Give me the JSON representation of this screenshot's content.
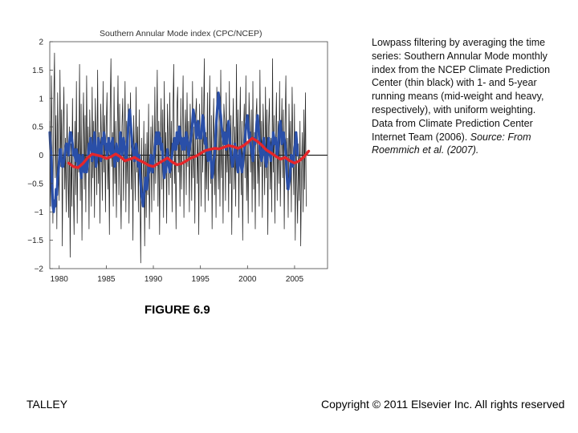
{
  "chart_data": {
    "type": "line",
    "title": "Southern Annular Mode index (CPC/NCEP)",
    "xlabel": "",
    "ylabel": "",
    "xlim": [
      1979,
      2008.5
    ],
    "ylim": [
      -2,
      2
    ],
    "x_ticks": [
      "1980",
      "1985",
      "1990",
      "1995",
      "2000",
      "2005"
    ],
    "y_ticks": [
      "2",
      "1.5",
      "1",
      "0.5",
      "0",
      "−0.5",
      "−1",
      "−1.5",
      "−2"
    ],
    "zero_line": true,
    "grid": false,
    "legend": "none",
    "series": [
      {
        "style": "monthly (thin black)",
        "color": "#2a2a2a",
        "start": 1979.0,
        "step": 0.0833,
        "values": [
          0.6,
          -0.9,
          1.4,
          0.3,
          -1.2,
          0.9,
          1.8,
          -0.4,
          0.7,
          -1.3,
          1.1,
          0.2,
          -0.8,
          1.5,
          -0.2,
          0.8,
          -1.6,
          0.4,
          1.2,
          -0.6,
          0.3,
          -1.0,
          0.9,
          -0.3,
          -1.1,
          0.5,
          -1.8,
          0.2,
          -0.9,
          1.0,
          -0.5,
          -1.4,
          0.6,
          -0.7,
          1.3,
          -1.2,
          0.4,
          -0.3,
          1.6,
          -0.8,
          0.9,
          -1.5,
          0.2,
          1.1,
          -0.6,
          0.7,
          -1.0,
          1.4,
          -0.2,
          0.5,
          -1.3,
          0.8,
          0.1,
          -0.9,
          1.2,
          -0.4,
          0.6,
          -1.1,
          1.0,
          0.3,
          -0.7,
          1.5,
          -0.5,
          0.4,
          -1.2,
          0.9,
          0.2,
          -0.8,
          1.3,
          -0.3,
          0.7,
          -1.0,
          0.5,
          1.1,
          -0.6,
          0.2,
          -1.4,
          0.8,
          1.7,
          -0.2,
          0.4,
          -0.9,
          1.2,
          -0.5,
          0.6,
          -1.1,
          0.3,
          1.4,
          -0.7,
          0.9,
          -0.4,
          -1.3,
          0.5,
          1.0,
          -0.8,
          0.2,
          1.3,
          -1.0,
          0.6,
          -0.5,
          0.9,
          -1.2,
          0.4,
          1.1,
          -0.6,
          0.3,
          -1.5,
          0.7,
          0.0,
          -0.8,
          1.2,
          -0.3,
          0.5,
          -1.0,
          0.8,
          -0.6,
          -1.9,
          0.3,
          -0.9,
          -0.4,
          0.6,
          -1.6,
          0.2,
          -1.1,
          0.4,
          -0.7,
          0.9,
          -1.3,
          -0.2,
          0.5,
          -1.0,
          0.7,
          0.1,
          -0.8,
          1.2,
          -0.5,
          0.3,
          1.5,
          -0.9,
          0.6,
          -1.4,
          0.2,
          1.0,
          -0.6,
          0.8,
          -1.1,
          1.3,
          -0.2,
          0.4,
          -1.2,
          0.9,
          0.3,
          -0.7,
          1.1,
          -0.4,
          0.6,
          -1.0,
          0.7,
          1.6,
          -0.5,
          0.2,
          -1.3,
          0.8,
          1.2,
          -0.3,
          0.5,
          -0.9,
          1.0,
          -0.6,
          0.4,
          1.4,
          -1.1,
          0.3,
          0.8,
          -0.7,
          1.1,
          -0.2,
          0.6,
          -1.0,
          0.9,
          0.2,
          -0.8,
          1.3,
          -0.4,
          0.5,
          -1.2,
          0.7,
          1.0,
          -0.5,
          0.3,
          -1.4,
          0.9,
          0.1,
          -0.9,
          1.2,
          -0.3,
          0.6,
          1.7,
          -1.0,
          0.4,
          -0.6,
          1.1,
          -0.8,
          0.2,
          1.4,
          -0.5,
          0.7,
          -1.3,
          0.3,
          1.0,
          -0.7,
          0.5,
          -1.1,
          1.2,
          0.0,
          -0.6,
          0.8,
          -0.9,
          1.5,
          -0.4,
          0.3,
          -1.2,
          0.9,
          0.6,
          -0.8,
          1.1,
          -0.3,
          0.4,
          -1.0,
          1.3,
          -0.5,
          0.7,
          -1.4,
          0.2,
          1.0,
          -0.6,
          0.5,
          -0.9,
          1.6,
          -0.2,
          0.8,
          -1.1,
          0.3,
          1.2,
          -0.7,
          0.6,
          -1.5,
          0.4,
          0.9,
          -0.4,
          1.4,
          -0.8,
          0.2,
          -1.2,
          1.1,
          0.5,
          -0.3,
          0.8,
          -1.0,
          1.3,
          -0.6,
          0.4,
          -1.3,
          0.7,
          1.0,
          -0.5,
          0.2,
          -0.9,
          1.5,
          -0.2,
          0.6,
          -1.1,
          0.9,
          0.3,
          -0.7,
          1.2,
          -0.4,
          0.8,
          -1.4,
          0.5,
          1.0,
          -0.6,
          0.3,
          -1.0,
          1.7,
          -0.3,
          0.7,
          -1.2,
          0.4,
          1.1,
          -0.8,
          0.6,
          -0.5,
          1.3,
          -0.9,
          0.2,
          1.0,
          -0.4,
          0.8,
          -1.3,
          0.5,
          1.4,
          -0.6,
          0.3,
          -1.1,
          0.9,
          -0.2,
          0.6,
          -1.0,
          1.2,
          0.1,
          -0.7,
          0.9,
          -1.5,
          0.4,
          -0.5,
          -1.2,
          0.2,
          -0.8,
          0.6,
          -1.6,
          -0.3,
          0.4,
          -1.0,
          0.8,
          -0.6,
          1.1,
          -0.9
        ]
      },
      {
        "style": "1-year running mean (mid-weight)",
        "color": "#2a4fa8",
        "start": 1979.0,
        "step": 0.0833,
        "values": [
          0.4,
          0.1,
          0.0,
          -0.5,
          -0.9,
          -1.0,
          -0.8,
          -0.9,
          -0.6,
          -0.7,
          -0.4,
          -0.3,
          -0.1,
          0.1,
          0.1,
          -0.1,
          -0.2,
          -0.2,
          -0.1,
          0.0,
          0.1,
          0.2,
          0.2,
          0.1,
          0.0,
          0.2,
          0.4,
          0.4,
          0.3,
          0.2,
          0.0,
          0.1,
          0.0,
          -0.1,
          0.1,
          0.0,
          -0.2,
          -0.1,
          0.0,
          -0.2,
          -0.4,
          -0.2,
          0.0,
          -0.2,
          -0.3,
          -0.2,
          -0.1,
          -0.3,
          -0.2,
          0.0,
          0.2,
          0.1,
          0.3,
          0.1,
          -0.1,
          0.0,
          0.2,
          0.4,
          0.1,
          -0.2,
          -0.1,
          0.1,
          0.3,
          0.2,
          0.0,
          -0.1,
          0.1,
          0.3,
          0.2,
          0.4,
          0.3,
          0.1,
          0.2,
          0.0,
          0.1,
          0.3,
          0.2,
          0.1,
          0.0,
          0.2,
          0.3,
          0.1,
          0.0,
          -0.2,
          0.0,
          0.2,
          0.1,
          -0.1,
          0.0,
          0.1,
          0.4,
          0.2,
          0.0,
          0.1,
          0.3,
          0.2,
          0.1,
          -0.1,
          0.0,
          0.2,
          0.5,
          0.7,
          0.8,
          0.6,
          0.4,
          0.2,
          0.1,
          0.0,
          -0.1,
          0.0,
          0.2,
          0.1,
          -0.1,
          -0.2,
          0.0,
          -0.3,
          -0.5,
          -0.7,
          -0.8,
          -0.9,
          -0.7,
          -0.6,
          -0.4,
          -0.5,
          -0.6,
          -0.4,
          -0.2,
          -0.3,
          -0.2,
          0.0,
          -0.1,
          -0.3,
          -0.1,
          0.0,
          0.1,
          0.3,
          0.4,
          0.2,
          0.3,
          0.4,
          0.2,
          0.3,
          0.1,
          0.2,
          0.0,
          -0.2,
          -0.4,
          -0.2,
          -0.3,
          -0.1,
          0.1,
          -0.1,
          -0.2,
          -0.3,
          -0.2,
          -0.1,
          0.0,
          0.2,
          0.1,
          0.3,
          0.2,
          0.1,
          0.4,
          0.2,
          0.3,
          0.5,
          0.4,
          0.2,
          0.3,
          0.1,
          0.2,
          0.3,
          0.1,
          0.2,
          0.4,
          0.3,
          0.2,
          0.0,
          0.1,
          0.2,
          0.3,
          0.4,
          0.6,
          0.8,
          0.7,
          0.6,
          0.5,
          0.3,
          0.4,
          0.6,
          0.5,
          0.3,
          0.4,
          0.3,
          0.5,
          0.7,
          0.6,
          0.4,
          0.2,
          0.3,
          0.1,
          0.0,
          -0.1,
          0.0,
          0.1,
          0.0,
          -0.2,
          -0.4,
          -0.3,
          -0.1,
          0.0,
          0.2,
          0.5,
          0.7,
          0.9,
          1.1,
          1.0,
          0.8,
          0.7,
          0.5,
          0.4,
          0.3,
          0.2,
          0.4,
          0.3,
          0.1,
          0.3,
          0.5,
          0.6,
          0.4,
          0.2,
          0.0,
          -0.1,
          -0.2,
          -0.1,
          0.0,
          0.2,
          0.1,
          0.0,
          -0.2,
          -0.3,
          -0.1,
          0.1,
          0.0,
          -0.2,
          -0.3,
          -0.2,
          0.0,
          0.1,
          0.3,
          0.5,
          0.6,
          0.7,
          0.5,
          0.3,
          0.4,
          0.2,
          0.1,
          0.0,
          -0.1,
          0.1,
          0.3,
          0.2,
          0.4,
          0.6,
          0.7,
          0.5,
          0.3,
          0.1,
          0.0,
          -0.1,
          0.0,
          0.2,
          0.3,
          0.1,
          -0.1,
          -0.2,
          -0.1,
          0.1,
          0.3,
          0.2,
          0.0,
          -0.1,
          0.1,
          0.2,
          0.4,
          0.3,
          0.2,
          0.3,
          0.1,
          0.0,
          0.1,
          0.3,
          0.5,
          0.6,
          0.4,
          0.2,
          0.3,
          0.4,
          0.3,
          0.2,
          0.0,
          -0.3,
          -0.5,
          -0.6,
          -0.5,
          -0.4,
          -0.2,
          0.0,
          -0.1,
          -0.2,
          -0.1,
          0.1,
          0.2,
          0.4,
          0.2,
          0.0
        ]
      },
      {
        "style": "5-year running mean (heavy)",
        "color": "#e5262a",
        "x": [
          1981.0,
          1981.5,
          1982.0,
          1982.5,
          1983.0,
          1983.5,
          1984.0,
          1984.5,
          1985.0,
          1985.5,
          1986.0,
          1986.5,
          1987.0,
          1987.5,
          1988.0,
          1988.5,
          1989.0,
          1989.5,
          1990.0,
          1990.5,
          1991.0,
          1991.5,
          1992.0,
          1992.5,
          1993.0,
          1993.5,
          1994.0,
          1994.5,
          1995.0,
          1995.5,
          1996.0,
          1996.5,
          1997.0,
          1997.5,
          1998.0,
          1998.5,
          1999.0,
          1999.5,
          2000.0,
          2000.5,
          2001.0,
          2001.5,
          2002.0,
          2002.5,
          2003.0,
          2003.5,
          2004.0,
          2004.5,
          2005.0,
          2005.5,
          2006.0,
          2006.5
        ],
        "values": [
          -0.14,
          -0.2,
          -0.22,
          -0.15,
          -0.05,
          0.02,
          0.0,
          -0.02,
          -0.06,
          -0.03,
          0.02,
          -0.03,
          -0.1,
          -0.07,
          -0.04,
          -0.09,
          -0.13,
          -0.18,
          -0.2,
          -0.15,
          -0.1,
          -0.05,
          -0.12,
          -0.17,
          -0.15,
          -0.1,
          -0.05,
          -0.02,
          0.03,
          0.08,
          0.1,
          0.12,
          0.11,
          0.14,
          0.17,
          0.15,
          0.12,
          0.16,
          0.22,
          0.3,
          0.25,
          0.18,
          0.09,
          0.04,
          -0.02,
          -0.07,
          -0.04,
          -0.1,
          -0.14,
          -0.1,
          -0.03,
          0.07
        ]
      }
    ]
  },
  "caption": {
    "text": "Lowpass filtering by averaging the time series: Southern Annular Mode monthly index from the NCEP Climate Prediction Center (thin black) with 1- and 5-year running means (mid-weight and heavy, respectively), with uniform weighting. Data from Climate Prediction Center Internet Team (2006).",
    "source": "Source: From Roemmich et al. (2007)."
  },
  "figure_label": "FIGURE 6.9",
  "footer": {
    "author": "TALLEY",
    "copyright": "Copyright © 2011 Elsevier Inc. All rights reserved"
  }
}
